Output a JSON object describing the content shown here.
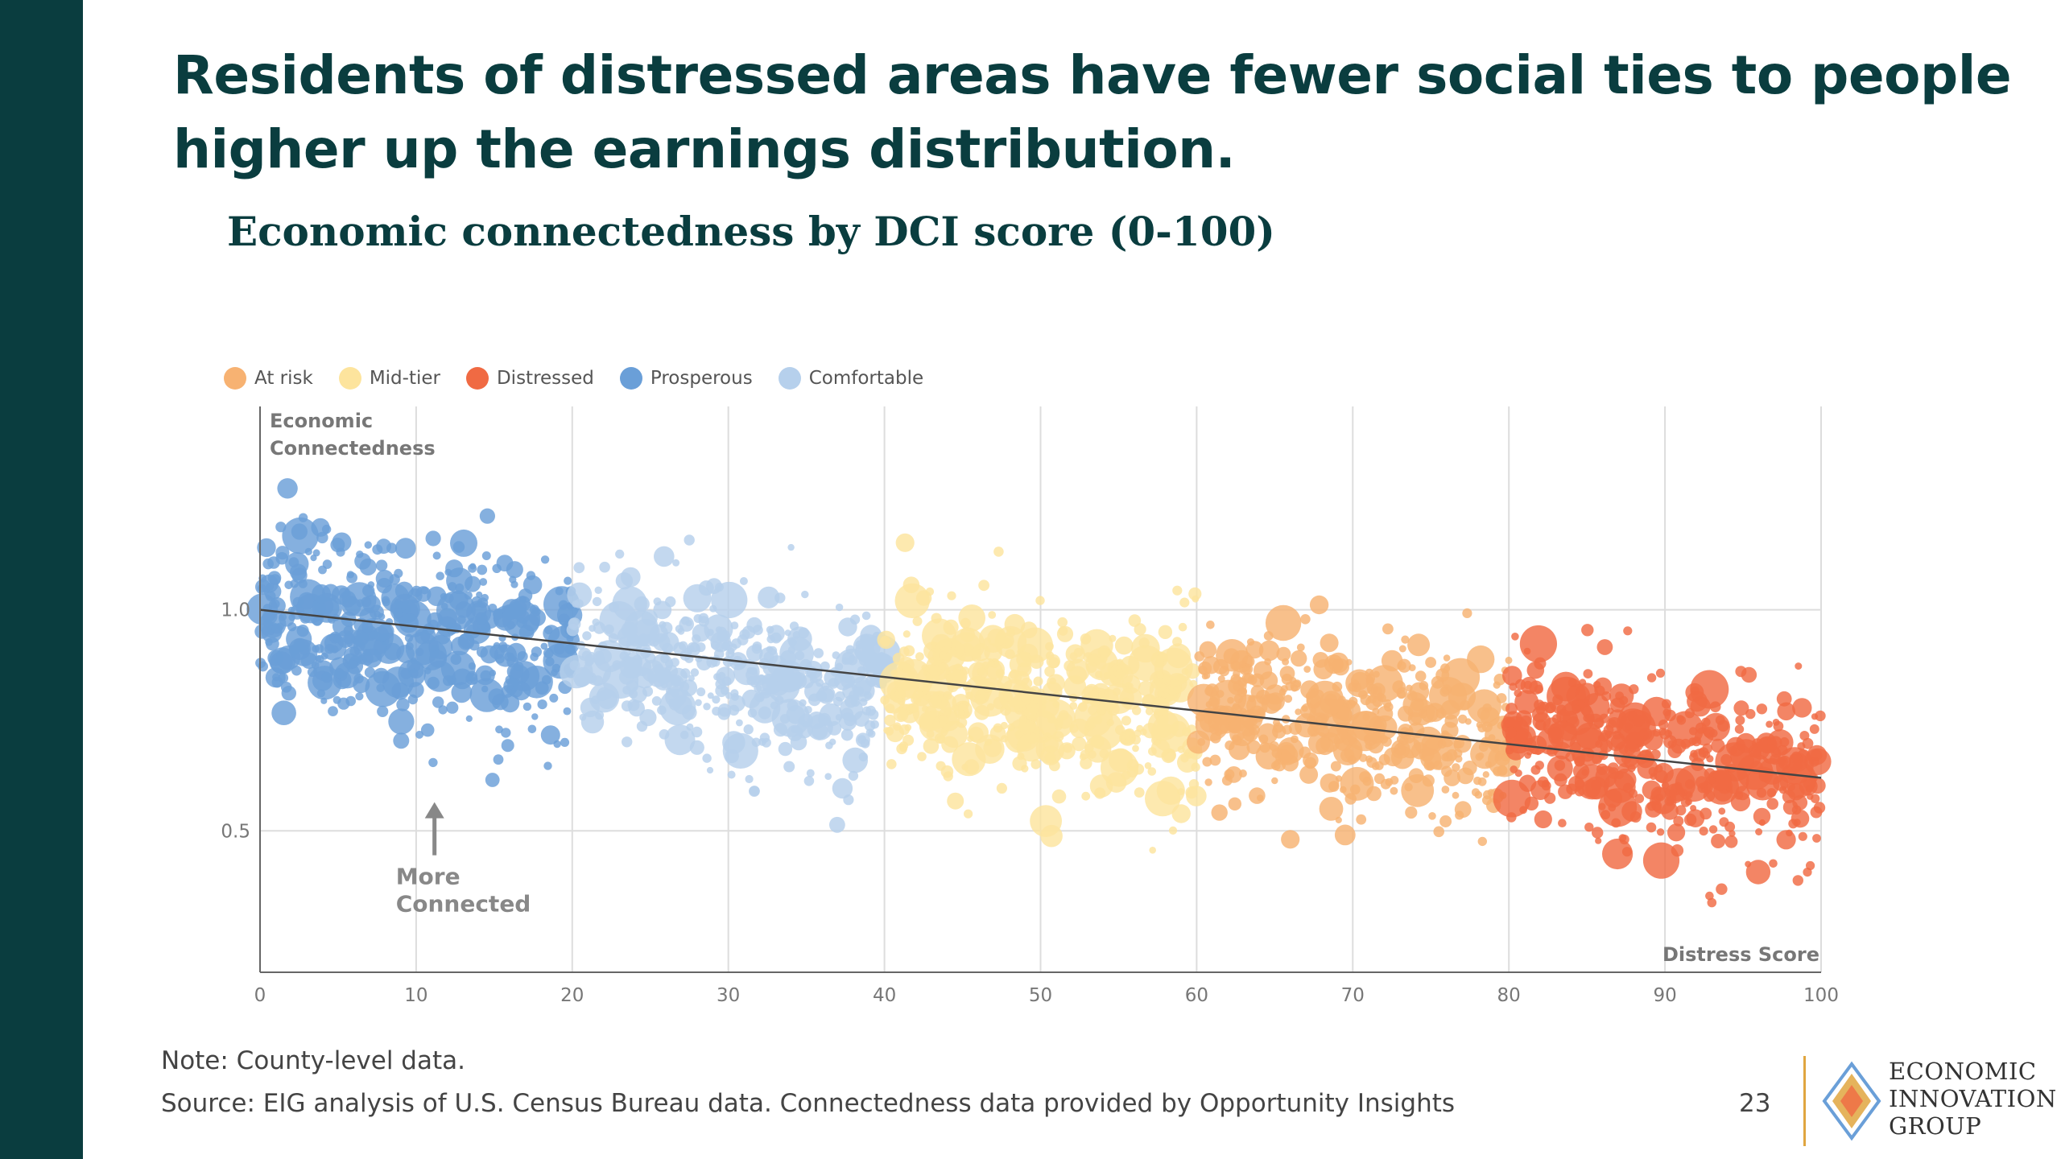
{
  "headline": "Residents of distressed areas have fewer social ties to people higher up the earnings distribution.",
  "chart_data": {
    "type": "scatter",
    "title": "Economic connectedness by DCI score (0-100)",
    "xlabel": "Distress Score",
    "ylabel": "Economic Connectedness",
    "xlim": [
      0,
      100
    ],
    "ylim": [
      0.18,
      1.46
    ],
    "xticks": [
      0,
      10,
      20,
      30,
      40,
      50,
      60,
      70,
      80,
      90,
      100
    ],
    "yticks": [
      0.5,
      1.0
    ],
    "grid": true,
    "legend_position": "top-left",
    "legend": [
      {
        "name": "At risk",
        "color": "#f7b272"
      },
      {
        "name": "Mid-tier",
        "color": "#fde49d"
      },
      {
        "name": "Distressed",
        "color": "#f06a43"
      },
      {
        "name": "Prosperous",
        "color": "#6a9fd8"
      },
      {
        "name": "Comfortable",
        "color": "#b6d0ec"
      }
    ],
    "series": [
      {
        "name": "Prosperous",
        "x_range": [
          0,
          20
        ],
        "color": "#6a9fd8",
        "center_start": 1.0,
        "center_end": 0.9,
        "spread": 0.14,
        "count": 420
      },
      {
        "name": "Comfortable",
        "x_range": [
          20,
          40
        ],
        "color": "#b6d0ec",
        "center_start": 0.92,
        "center_end": 0.8,
        "spread": 0.13,
        "count": 420
      },
      {
        "name": "Mid-tier",
        "x_range": [
          40,
          60
        ],
        "color": "#fde49d",
        "center_start": 0.82,
        "center_end": 0.76,
        "spread": 0.13,
        "count": 420
      },
      {
        "name": "At risk",
        "x_range": [
          60,
          80
        ],
        "color": "#f7b272",
        "center_start": 0.78,
        "center_end": 0.7,
        "spread": 0.13,
        "count": 420
      },
      {
        "name": "Distressed",
        "x_range": [
          80,
          100
        ],
        "color": "#f06a43",
        "center_start": 0.72,
        "center_end": 0.6,
        "spread": 0.13,
        "count": 420
      }
    ],
    "trendline": {
      "x": [
        0,
        100
      ],
      "y": [
        1.0,
        0.62
      ]
    },
    "annotation": {
      "text_line1": "More",
      "text_line2": "Connected",
      "x": 8.7,
      "y": 0.39
    }
  },
  "footer": {
    "note": "Note: County-level data.",
    "source": "Source: EIG analysis of U.S. Census Bureau data. Connectedness data provided by Opportunity Insights",
    "page_number": "23"
  },
  "logo": {
    "line1": "ECONOMIC",
    "line2": "INNOVATION",
    "line3": "GROUP",
    "colors": [
      "#6a9fd8",
      "#e0a640",
      "#f06a43"
    ]
  }
}
